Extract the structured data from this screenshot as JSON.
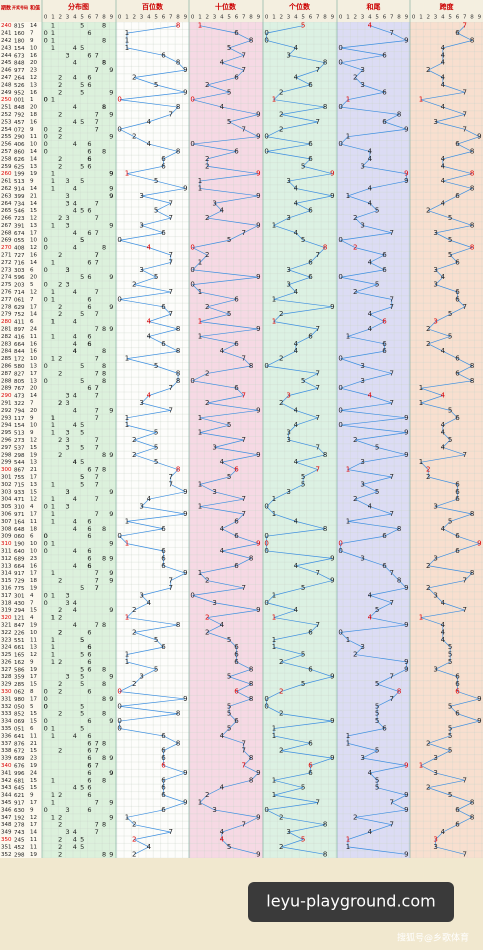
{
  "header": {
    "period": "期数",
    "draw": "开奖号码",
    "sum": "和值",
    "sections": [
      "分布图",
      "百位数",
      "十位数",
      "个位数",
      "和尾",
      "跨度"
    ],
    "digits": [
      0,
      1,
      2,
      3,
      4,
      5,
      6,
      7,
      8,
      9
    ]
  },
  "rows": [
    [
      240,
      8,
      1,
      5,
      14,
      4,
      7
    ],
    [
      241,
      1,
      6,
      0,
      7,
      7,
      6
    ],
    [
      242,
      1,
      8,
      0,
      9,
      9,
      8
    ],
    [
      243,
      1,
      5,
      4,
      10,
      0,
      4
    ],
    [
      244,
      6,
      7,
      3,
      16,
      6,
      4
    ],
    [
      245,
      8,
      4,
      8,
      20,
      0,
      4
    ],
    [
      246,
      9,
      7,
      7,
      23,
      3,
      2
    ],
    [
      247,
      2,
      6,
      4,
      12,
      2,
      4
    ],
    [
      248,
      5,
      2,
      6,
      13,
      3,
      4
    ],
    [
      249,
      9,
      5,
      2,
      16,
      6,
      7
    ],
    [
      250,
      0,
      0,
      1,
      1,
      1,
      1
    ],
    [
      251,
      8,
      4,
      8,
      20,
      0,
      4
    ],
    [
      252,
      7,
      9,
      2,
      18,
      8,
      7
    ],
    [
      253,
      4,
      5,
      7,
      16,
      6,
      3
    ],
    [
      254,
      0,
      7,
      2,
      9,
      9,
      7
    ],
    [
      255,
      2,
      9,
      0,
      11,
      1,
      9
    ],
    [
      256,
      4,
      0,
      6,
      10,
      0,
      6
    ],
    [
      257,
      8,
      6,
      0,
      14,
      4,
      8
    ],
    [
      258,
      6,
      2,
      6,
      14,
      4,
      4
    ],
    [
      259,
      6,
      2,
      5,
      13,
      3,
      4
    ],
    [
      260,
      1,
      9,
      9,
      19,
      9,
      8
    ],
    [
      261,
      5,
      1,
      3,
      9,
      9,
      4
    ],
    [
      262,
      9,
      1,
      4,
      14,
      4,
      8
    ],
    [
      263,
      3,
      9,
      9,
      21,
      1,
      6
    ],
    [
      264,
      7,
      3,
      4,
      14,
      4,
      4
    ],
    [
      265,
      5,
      4,
      6,
      15,
      5,
      2
    ],
    [
      266,
      7,
      2,
      3,
      12,
      2,
      5
    ],
    [
      267,
      3,
      9,
      1,
      13,
      3,
      8
    ],
    [
      268,
      6,
      7,
      4,
      17,
      7,
      3
    ],
    [
      269,
      0,
      5,
      5,
      10,
      0,
      5
    ],
    [
      270,
      4,
      0,
      8,
      12,
      2,
      8
    ],
    [
      271,
      7,
      2,
      7,
      16,
      6,
      5
    ],
    [
      272,
      7,
      1,
      6,
      14,
      4,
      6
    ],
    [
      273,
      3,
      0,
      3,
      6,
      6,
      3
    ],
    [
      274,
      5,
      9,
      6,
      20,
      0,
      4
    ],
    [
      275,
      2,
      0,
      3,
      5,
      5,
      3
    ],
    [
      276,
      7,
      1,
      4,
      12,
      2,
      6
    ],
    [
      277,
      0,
      6,
      1,
      7,
      7,
      6
    ],
    [
      278,
      6,
      2,
      9,
      17,
      7,
      7
    ],
    [
      279,
      7,
      5,
      2,
      14,
      4,
      5
    ],
    [
      280,
      4,
      1,
      1,
      6,
      6,
      3
    ],
    [
      281,
      8,
      9,
      7,
      24,
      4,
      2
    ],
    [
      282,
      4,
      1,
      6,
      11,
      1,
      5
    ],
    [
      283,
      6,
      6,
      4,
      16,
      6,
      2
    ],
    [
      284,
      8,
      4,
      4,
      16,
      6,
      4
    ],
    [
      285,
      1,
      7,
      2,
      10,
      0,
      6
    ],
    [
      286,
      5,
      8,
      0,
      13,
      3,
      8
    ],
    [
      287,
      8,
      2,
      7,
      17,
      7,
      6
    ],
    [
      288,
      8,
      0,
      5,
      13,
      3,
      8
    ],
    [
      289,
      7,
      6,
      7,
      20,
      0,
      1
    ],
    [
      290,
      4,
      7,
      3,
      14,
      4,
      4
    ],
    [
      291,
      3,
      2,
      2,
      7,
      7,
      1
    ],
    [
      292,
      7,
      9,
      4,
      20,
      0,
      5
    ],
    [
      293,
      1,
      1,
      7,
      9,
      9,
      6
    ],
    [
      294,
      1,
      5,
      4,
      10,
      0,
      4
    ],
    [
      295,
      5,
      1,
      3,
      9,
      9,
      4
    ],
    [
      296,
      2,
      7,
      3,
      12,
      2,
      5
    ],
    [
      297,
      5,
      3,
      7,
      15,
      5,
      4
    ],
    [
      298,
      2,
      9,
      8,
      19,
      9,
      7
    ],
    [
      299,
      5,
      4,
      4,
      13,
      3,
      1
    ],
    [
      300,
      8,
      6,
      7,
      21,
      1,
      2
    ],
    [
      301,
      7,
      5,
      5,
      17,
      7,
      2
    ],
    [
      302,
      7,
      1,
      5,
      13,
      3,
      6
    ],
    [
      303,
      9,
      3,
      3,
      15,
      5,
      6
    ],
    [
      304,
      4,
      7,
      1,
      12,
      2,
      6
    ],
    [
      305,
      3,
      1,
      0,
      4,
      4,
      3
    ],
    [
      306,
      9,
      7,
      1,
      17,
      7,
      8
    ],
    [
      307,
      1,
      6,
      4,
      11,
      1,
      5
    ],
    [
      308,
      6,
      4,
      8,
      18,
      8,
      4
    ],
    [
      309,
      0,
      6,
      0,
      6,
      6,
      6
    ],
    [
      310,
      1,
      9,
      0,
      10,
      0,
      9
    ],
    [
      311,
      6,
      4,
      0,
      10,
      0,
      6
    ],
    [
      312,
      6,
      8,
      9,
      23,
      3,
      3
    ],
    [
      313,
      6,
      6,
      4,
      16,
      6,
      2
    ],
    [
      314,
      9,
      1,
      7,
      17,
      7,
      8
    ],
    [
      315,
      7,
      2,
      9,
      18,
      8,
      7
    ],
    [
      316,
      7,
      7,
      5,
      19,
      9,
      2
    ],
    [
      317,
      3,
      0,
      1,
      4,
      4,
      3
    ],
    [
      318,
      4,
      3,
      0,
      7,
      7,
      4
    ],
    [
      319,
      2,
      9,
      4,
      15,
      5,
      7
    ],
    [
      320,
      1,
      2,
      1,
      4,
      4,
      1
    ],
    [
      321,
      8,
      4,
      7,
      19,
      9,
      4
    ],
    [
      322,
      2,
      2,
      6,
      10,
      0,
      4
    ],
    [
      323,
      5,
      5,
      1,
      11,
      1,
      4
    ],
    [
      324,
      6,
      6,
      1,
      13,
      3,
      5
    ],
    [
      325,
      1,
      6,
      5,
      12,
      2,
      5
    ],
    [
      326,
      1,
      6,
      2,
      9,
      9,
      5
    ],
    [
      327,
      5,
      8,
      6,
      19,
      9,
      3
    ],
    [
      328,
      3,
      5,
      9,
      17,
      7,
      6
    ],
    [
      329,
      2,
      8,
      5,
      15,
      5,
      6
    ],
    [
      330,
      0,
      6,
      2,
      8,
      8,
      6
    ],
    [
      331,
      9,
      8,
      0,
      17,
      7,
      9
    ],
    [
      332,
      0,
      5,
      0,
      5,
      5,
      5
    ],
    [
      333,
      8,
      5,
      2,
      15,
      5,
      6
    ],
    [
      334,
      0,
      6,
      9,
      15,
      5,
      9
    ],
    [
      335,
      0,
      5,
      1,
      6,
      6,
      5
    ],
    [
      336,
      6,
      4,
      1,
      11,
      1,
      5
    ],
    [
      337,
      8,
      7,
      6,
      21,
      1,
      2
    ],
    [
      338,
      6,
      7,
      2,
      15,
      5,
      5
    ],
    [
      339,
      6,
      8,
      9,
      23,
      3,
      3
    ],
    [
      340,
      6,
      7,
      6,
      19,
      9,
      1
    ],
    [
      341,
      9,
      9,
      6,
      24,
      4,
      3
    ],
    [
      342,
      6,
      8,
      1,
      15,
      5,
      7
    ],
    [
      343,
      6,
      4,
      5,
      15,
      5,
      2
    ],
    [
      344,
      6,
      2,
      1,
      9,
      9,
      5
    ],
    [
      345,
      9,
      1,
      7,
      17,
      7,
      8
    ],
    [
      346,
      6,
      3,
      0,
      9,
      9,
      6
    ],
    [
      347,
      1,
      9,
      2,
      12,
      2,
      8
    ],
    [
      348,
      2,
      7,
      8,
      17,
      7,
      6
    ],
    [
      349,
      7,
      4,
      3,
      14,
      4,
      4
    ],
    [
      350,
      2,
      4,
      5,
      11,
      1,
      3
    ],
    [
      351,
      4,
      5,
      2,
      11,
      1,
      3
    ],
    [
      352,
      2,
      9,
      8,
      19,
      9,
      7
    ]
  ],
  "watermark": {
    "site": "leyu-playground.com",
    "credit": "搜狐号@乡歌体育"
  }
}
